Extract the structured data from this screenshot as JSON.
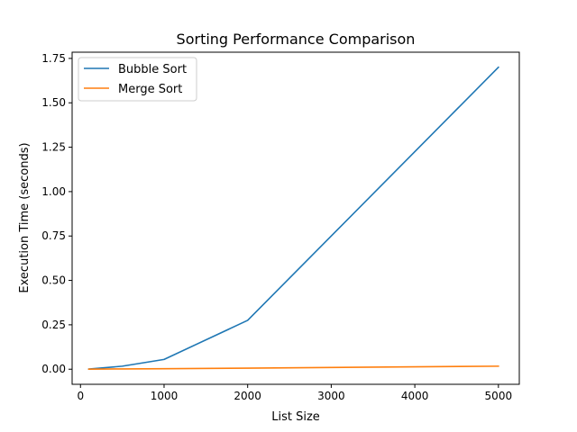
{
  "chart_data": {
    "type": "line",
    "title": "Sorting Performance Comparison",
    "xlabel": "List Size",
    "ylabel": "Execution Time (seconds)",
    "xlim": [
      -100,
      5250
    ],
    "ylim": [
      -0.085,
      1.785
    ],
    "xticks": [
      0,
      1000,
      2000,
      3000,
      4000,
      5000
    ],
    "xtick_labels": [
      "0",
      "1000",
      "2000",
      "3000",
      "4000",
      "5000"
    ],
    "yticks": [
      0.0,
      0.25,
      0.5,
      0.75,
      1.0,
      1.25,
      1.5,
      1.75
    ],
    "ytick_labels": [
      "0.00",
      "0.25",
      "0.50",
      "0.75",
      "1.00",
      "1.25",
      "1.50",
      "1.75"
    ],
    "grid": false,
    "legend_position": "top-left",
    "x": [
      100,
      500,
      1000,
      2000,
      5000
    ],
    "series": [
      {
        "name": "Bubble Sort",
        "color": "#1f77b4",
        "values": [
          0.0007,
          0.017,
          0.055,
          0.275,
          1.7
        ]
      },
      {
        "name": "Merge Sort",
        "color": "#ff7f0e",
        "values": [
          0.0003,
          0.0015,
          0.003,
          0.006,
          0.017
        ]
      }
    ]
  }
}
